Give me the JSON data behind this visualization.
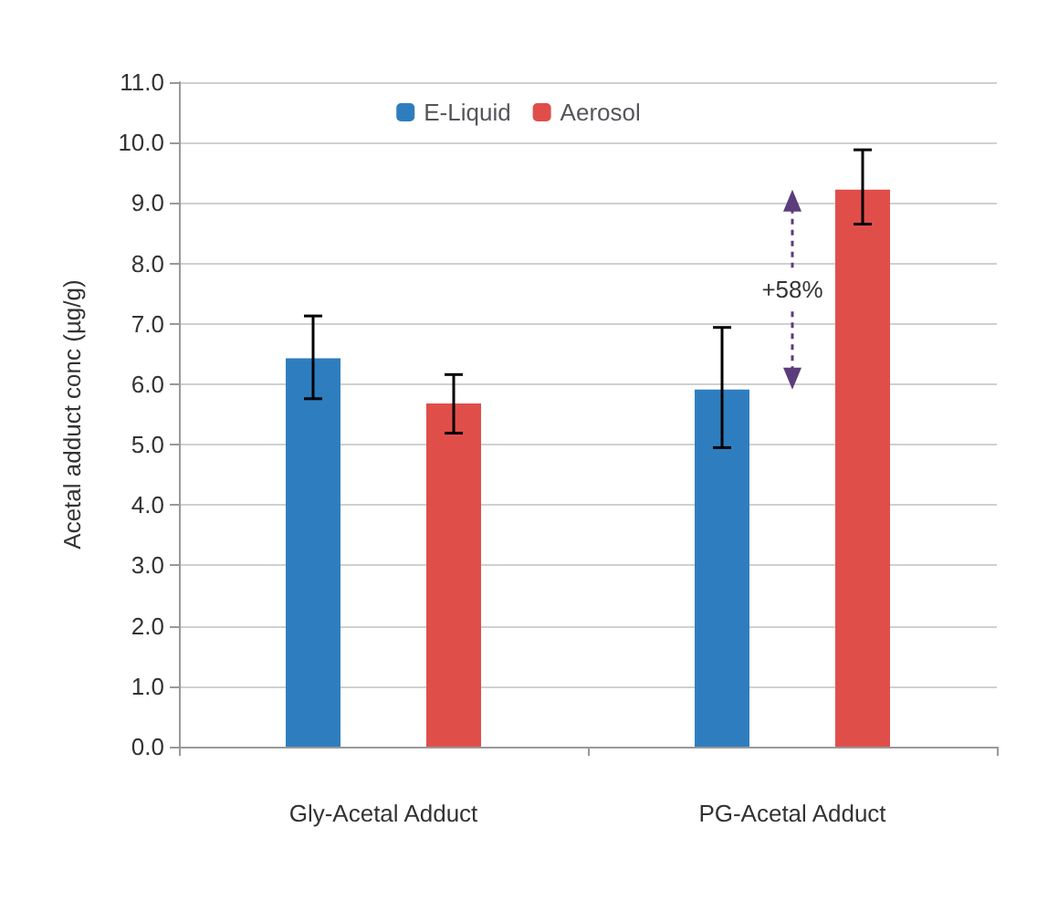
{
  "chart_data": {
    "type": "bar",
    "ylabel": "Acetal adduct conc (µg/g)",
    "categories": [
      "Gly-Acetal Adduct",
      "PG-Acetal Adduct"
    ],
    "series": [
      {
        "name": "E-Liquid",
        "color": "#2e7ebf",
        "values": [
          6.43,
          5.91
        ],
        "errors": [
          [
            5.76,
            7.13
          ],
          [
            4.95,
            6.94
          ]
        ]
      },
      {
        "name": "Aerosol",
        "color": "#e04e4a",
        "values": [
          5.68,
          9.22
        ],
        "errors": [
          [
            5.19,
            6.16
          ],
          [
            8.65,
            9.88
          ]
        ]
      }
    ],
    "ylim": [
      0,
      11
    ],
    "yticks": [
      {
        "value": 0,
        "label": "0.0"
      },
      {
        "value": 1,
        "label": "1.0"
      },
      {
        "value": 2,
        "label": "2.0"
      },
      {
        "value": 3,
        "label": "3.0"
      },
      {
        "value": 4,
        "label": "4.0"
      },
      {
        "value": 5,
        "label": "5.0"
      },
      {
        "value": 6,
        "label": "6.0"
      },
      {
        "value": 7,
        "label": "7.0"
      },
      {
        "value": 8,
        "label": "8.0"
      },
      {
        "value": 9,
        "label": "9.0"
      },
      {
        "value": 10,
        "label": "10.0"
      },
      {
        "value": 11,
        "label": "11.0"
      }
    ],
    "grid": "y",
    "legend": "top",
    "annotations": [
      "+58%"
    ]
  }
}
